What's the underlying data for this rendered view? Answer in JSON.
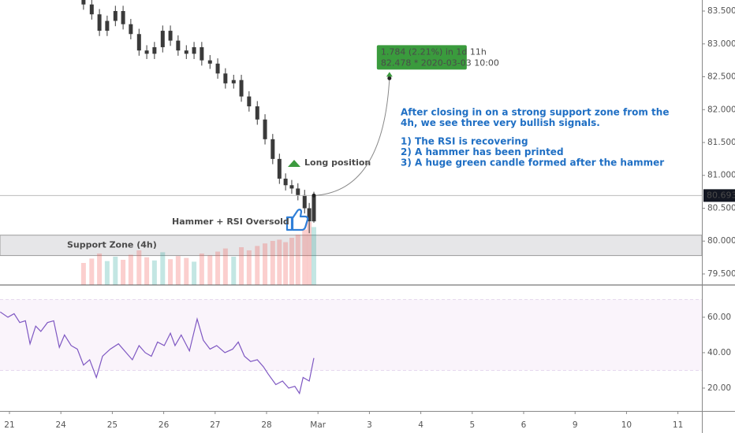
{
  "chart_data": [
    {
      "type": "candlestick",
      "color": "#3a3a3a",
      "xlim": [
        -0.184,
        13.466
      ],
      "ylim": [
        79.332,
        83.668
      ],
      "yticks": [
        {
          "value": 79.5,
          "label": "79.500"
        },
        {
          "value": 80.0,
          "label": "80.000"
        },
        {
          "value": 80.5,
          "label": "80.500"
        },
        {
          "value": 81.0,
          "label": "81.000"
        },
        {
          "value": 81.5,
          "label": "81.500"
        },
        {
          "value": 82.0,
          "label": "82.000"
        },
        {
          "value": 82.5,
          "label": "82.500"
        },
        {
          "value": 83.0,
          "label": "83.000"
        },
        {
          "value": 83.5,
          "label": "83.500"
        }
      ],
      "x": [
        1.44,
        1.6,
        1.75,
        1.9,
        2.06,
        2.21,
        2.36,
        2.52,
        2.67,
        2.82,
        2.98,
        3.13,
        3.28,
        3.44,
        3.59,
        3.74,
        3.9,
        4.05,
        4.2,
        4.36,
        4.51,
        4.66,
        4.82,
        4.97,
        5.12,
        5.25,
        5.37,
        5.49,
        5.61,
        5.74,
        5.83,
        5.92
      ],
      "open": [
        83.75,
        83.6,
        83.45,
        83.2,
        83.35,
        83.5,
        83.3,
        83.15,
        82.9,
        82.85,
        82.95,
        83.2,
        83.05,
        82.9,
        82.85,
        82.95,
        82.75,
        82.7,
        82.55,
        82.4,
        82.45,
        82.2,
        82.05,
        81.85,
        81.55,
        81.25,
        80.95,
        80.85,
        80.8,
        80.7,
        80.5,
        80.3
      ],
      "high": [
        83.83,
        83.68,
        83.53,
        83.43,
        83.58,
        83.58,
        83.38,
        83.23,
        82.98,
        83.03,
        83.28,
        83.28,
        83.13,
        82.98,
        83.03,
        83.03,
        82.83,
        82.78,
        82.63,
        82.53,
        82.53,
        82.28,
        82.13,
        81.93,
        81.63,
        81.33,
        81.03,
        80.93,
        80.88,
        80.78,
        80.58,
        80.75
      ],
      "low": [
        83.52,
        83.37,
        83.12,
        83.12,
        83.27,
        83.22,
        83.07,
        82.82,
        82.77,
        82.77,
        82.87,
        82.97,
        82.82,
        82.77,
        82.77,
        82.67,
        82.62,
        82.47,
        82.32,
        82.32,
        82.12,
        81.97,
        81.77,
        81.47,
        81.17,
        80.87,
        80.77,
        80.72,
        80.62,
        80.42,
        80.12,
        80.28
      ],
      "close": [
        83.6,
        83.45,
        83.2,
        83.35,
        83.5,
        83.3,
        83.15,
        82.9,
        82.85,
        82.95,
        83.2,
        83.05,
        82.9,
        82.85,
        82.95,
        82.75,
        82.7,
        82.55,
        82.4,
        82.45,
        82.2,
        82.05,
        81.85,
        81.55,
        81.25,
        80.95,
        80.85,
        80.8,
        80.7,
        80.5,
        80.3,
        80.693
      ],
      "volume": [
        35,
        42,
        50,
        38,
        45,
        40,
        48,
        55,
        44,
        39,
        52,
        41,
        46,
        43,
        37,
        50,
        47,
        53,
        58,
        45,
        60,
        55,
        62,
        66,
        70,
        72,
        68,
        75,
        80,
        88,
        100,
        92
      ],
      "volume_lim": [
        0,
        100
      ],
      "volume_colors": {
        "up": "rgba(38,166,154,0.28)",
        "down": "rgba(239,83,80,0.28)"
      },
      "last_price": 80.693,
      "support_zone": {
        "label": "Support Zone (4h)",
        "range": [
          79.78,
          80.09
        ]
      },
      "long_label": "Long position",
      "hammer_label": "Hammer + RSI Oversold",
      "forecast": {
        "x": [
          5.92,
          7.39
        ],
        "price": [
          80.693,
          82.478
        ],
        "line1": "1.784 (2.21%) in 1d 11h",
        "line2": "82.478 *  2020-03-03  10:00"
      },
      "note": [
        [
          "After closing in on a strong support zone from the",
          "4h, we see three very bullish signals."
        ],
        [
          "1) The RSI is recovering",
          "2) A hammer has been printed",
          "3) A huge green candle formed after the hammer"
        ]
      ]
    },
    {
      "type": "line",
      "color": "#7e57c2",
      "xlim": [
        -0.184,
        13.466
      ],
      "ylim": [
        7.1,
        78.2
      ],
      "yticks": [
        {
          "value": 20,
          "label": "20.00"
        },
        {
          "value": 40,
          "label": "40.00"
        },
        {
          "value": 60,
          "label": "60.00"
        }
      ],
      "bands": [
        30,
        70
      ],
      "xticks": [
        {
          "value": 0,
          "label": "21"
        },
        {
          "value": 1,
          "label": "24"
        },
        {
          "value": 2,
          "label": "25"
        },
        {
          "value": 3,
          "label": "26"
        },
        {
          "value": 4,
          "label": "27"
        },
        {
          "value": 5,
          "label": "28"
        },
        {
          "value": 6,
          "label": "Mar"
        },
        {
          "value": 7,
          "label": "3"
        },
        {
          "value": 8,
          "label": "4"
        },
        {
          "value": 9,
          "label": "5"
        },
        {
          "value": 10,
          "label": "6"
        },
        {
          "value": 11,
          "label": "9"
        },
        {
          "value": 12,
          "label": "10"
        },
        {
          "value": 13,
          "label": "11"
        }
      ],
      "x": [
        -0.18,
        -0.03,
        0.09,
        0.2,
        0.31,
        0.4,
        0.51,
        0.61,
        0.74,
        0.86,
        0.97,
        1.07,
        1.2,
        1.32,
        1.44,
        1.56,
        1.69,
        1.81,
        1.96,
        2.12,
        2.27,
        2.39,
        2.52,
        2.64,
        2.76,
        2.88,
        3.01,
        3.13,
        3.22,
        3.34,
        3.5,
        3.65,
        3.77,
        3.9,
        4.03,
        4.19,
        4.34,
        4.45,
        4.57,
        4.69,
        4.82,
        4.94,
        5.03,
        5.18,
        5.31,
        5.43,
        5.55,
        5.64,
        5.71,
        5.83,
        5.92
      ],
      "values": [
        63,
        60,
        62,
        57,
        58,
        45,
        55,
        52,
        57,
        58,
        43,
        50,
        44,
        42,
        33,
        36,
        26,
        38,
        42,
        45,
        40,
        36,
        44,
        40,
        38,
        46,
        44,
        51,
        44,
        50,
        41,
        59,
        47,
        42,
        44,
        40,
        42,
        46,
        38,
        35,
        36,
        32,
        28,
        22,
        24,
        20,
        21,
        17,
        26,
        24,
        37
      ]
    }
  ]
}
